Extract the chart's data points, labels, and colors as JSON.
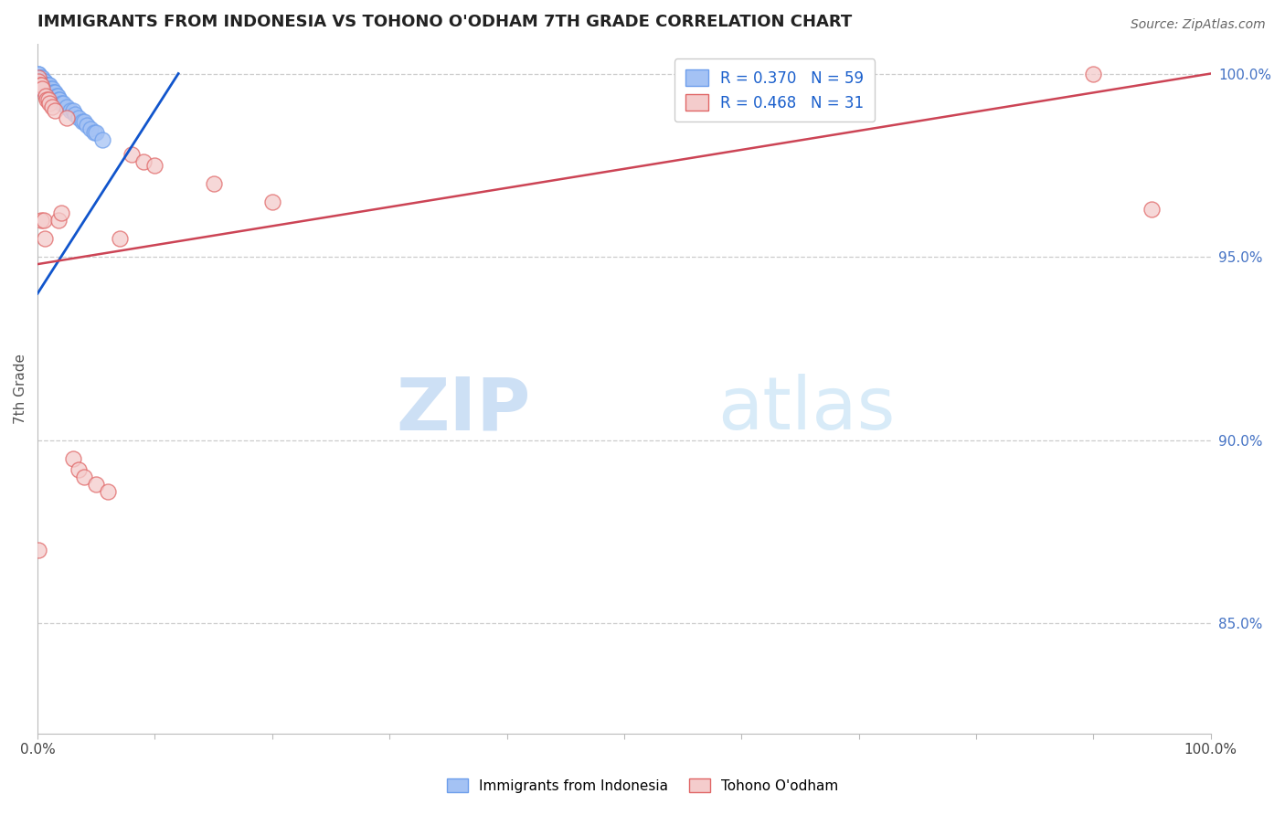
{
  "title": "IMMIGRANTS FROM INDONESIA VS TOHONO O'ODHAM 7TH GRADE CORRELATION CHART",
  "source": "Source: ZipAtlas.com",
  "ylabel": "7th Grade",
  "xlim": [
    0.0,
    1.0
  ],
  "ylim": [
    0.82,
    1.008
  ],
  "yticks": [
    0.85,
    0.9,
    0.95,
    1.0
  ],
  "ytick_labels": [
    "85.0%",
    "90.0%",
    "95.0%",
    "100.0%"
  ],
  "xticks": [
    0.0,
    0.1,
    0.2,
    0.3,
    0.4,
    0.5,
    0.6,
    0.7,
    0.8,
    0.9,
    1.0
  ],
  "xtick_labels": [
    "0.0%",
    "",
    "",
    "",
    "",
    "",
    "",
    "",
    "",
    "",
    "100.0%"
  ],
  "blue_R": 0.37,
  "blue_N": 59,
  "pink_R": 0.468,
  "pink_N": 31,
  "blue_color": "#a4c2f4",
  "pink_color": "#f4cccc",
  "blue_edge_color": "#6d9eeb",
  "pink_edge_color": "#e06666",
  "blue_line_color": "#1155cc",
  "pink_line_color": "#cc4455",
  "legend_label_blue": "Immigrants from Indonesia",
  "legend_label_pink": "Tohono O'odham",
  "blue_points_x": [
    0.001,
    0.001,
    0.001,
    0.001,
    0.001,
    0.001,
    0.001,
    0.002,
    0.002,
    0.002,
    0.002,
    0.002,
    0.002,
    0.003,
    0.003,
    0.003,
    0.003,
    0.003,
    0.004,
    0.004,
    0.004,
    0.004,
    0.005,
    0.005,
    0.005,
    0.006,
    0.006,
    0.006,
    0.007,
    0.007,
    0.008,
    0.008,
    0.009,
    0.009,
    0.01,
    0.01,
    0.011,
    0.012,
    0.013,
    0.014,
    0.015,
    0.016,
    0.017,
    0.018,
    0.019,
    0.02,
    0.022,
    0.025,
    0.028,
    0.03,
    0.032,
    0.035,
    0.038,
    0.04,
    0.042,
    0.045,
    0.048,
    0.05,
    0.055
  ],
  "blue_points_y": [
    0.999,
    0.999,
    0.999,
    1.0,
    1.0,
    0.998,
    0.997,
    0.999,
    0.999,
    0.998,
    0.998,
    0.997,
    0.996,
    0.999,
    0.998,
    0.998,
    0.997,
    0.996,
    0.999,
    0.998,
    0.997,
    0.996,
    0.998,
    0.997,
    0.996,
    0.998,
    0.997,
    0.996,
    0.997,
    0.996,
    0.997,
    0.996,
    0.997,
    0.995,
    0.997,
    0.995,
    0.996,
    0.996,
    0.995,
    0.995,
    0.995,
    0.994,
    0.994,
    0.993,
    0.993,
    0.992,
    0.992,
    0.991,
    0.99,
    0.99,
    0.989,
    0.988,
    0.987,
    0.987,
    0.986,
    0.985,
    0.984,
    0.984,
    0.982
  ],
  "pink_points_x": [
    0.001,
    0.001,
    0.001,
    0.002,
    0.003,
    0.003,
    0.004,
    0.005,
    0.006,
    0.007,
    0.008,
    0.009,
    0.01,
    0.012,
    0.015,
    0.018,
    0.02,
    0.025,
    0.03,
    0.035,
    0.04,
    0.05,
    0.06,
    0.07,
    0.08,
    0.09,
    0.1,
    0.15,
    0.2,
    0.9,
    0.95
  ],
  "pink_points_y": [
    0.999,
    0.998,
    0.87,
    0.997,
    0.997,
    0.96,
    0.996,
    0.96,
    0.955,
    0.994,
    0.993,
    0.993,
    0.992,
    0.991,
    0.99,
    0.96,
    0.962,
    0.988,
    0.895,
    0.892,
    0.89,
    0.888,
    0.886,
    0.955,
    0.978,
    0.976,
    0.975,
    0.97,
    0.965,
    1.0,
    0.963
  ],
  "blue_line_x": [
    0.0,
    0.12
  ],
  "blue_line_y": [
    0.94,
    1.0
  ],
  "pink_line_x": [
    0.0,
    1.0
  ],
  "pink_line_y": [
    0.948,
    1.0
  ]
}
